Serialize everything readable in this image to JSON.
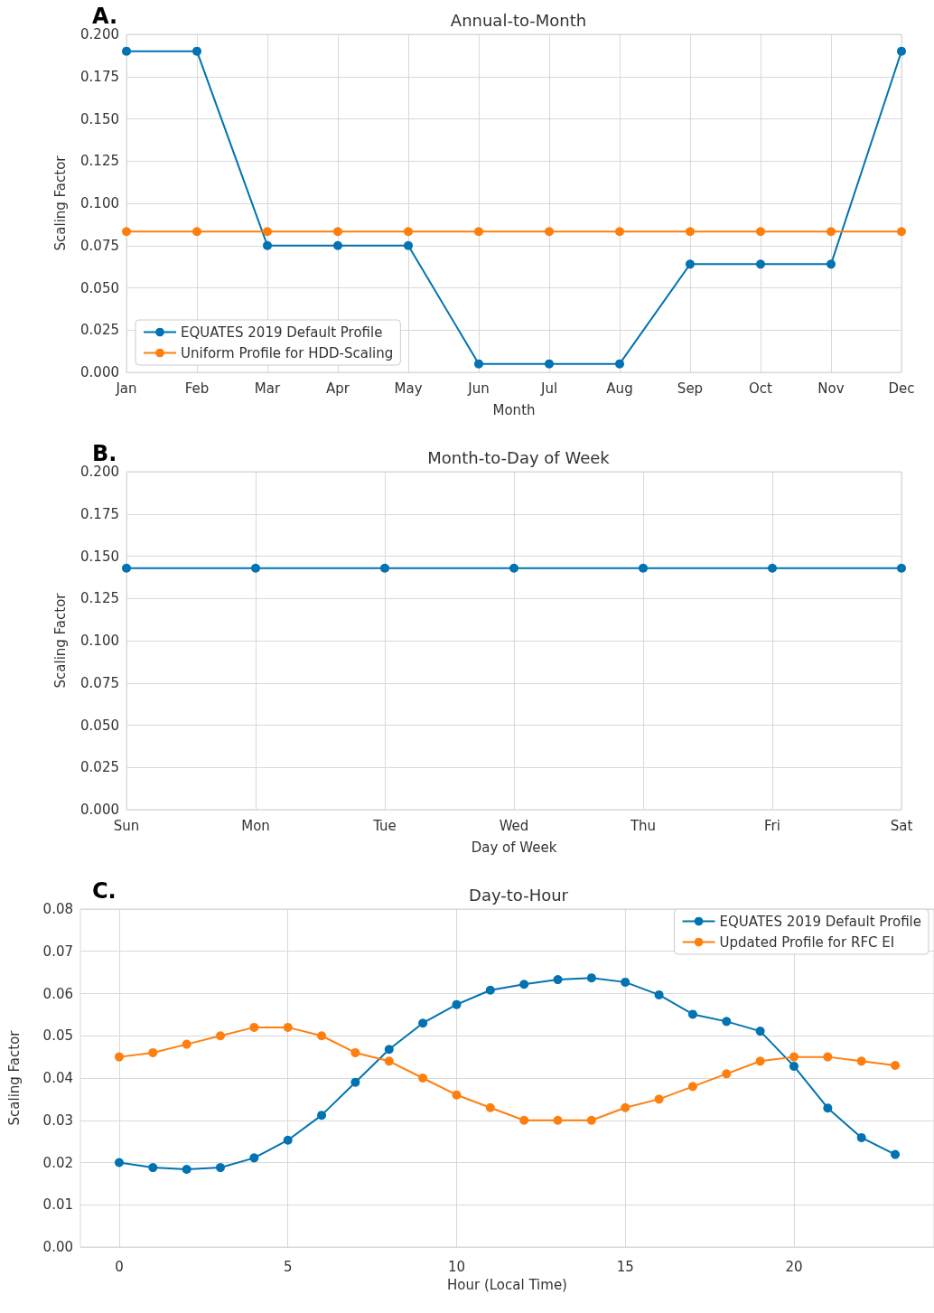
{
  "chart_data": [
    {
      "type": "line",
      "title": "Annual-to-Month",
      "xlabel": "Month",
      "ylabel": "Scaling Factor",
      "annotations": [
        "A."
      ],
      "categories": [
        "Jan",
        "Feb",
        "Mar",
        "Apr",
        "May",
        "Jun",
        "Jul",
        "Aug",
        "Sep",
        "Oct",
        "Nov",
        "Dec"
      ],
      "series": [
        {
          "name": "EQUATES 2019 Default Profile",
          "color": "#0173b2",
          "values": [
            0.19,
            0.19,
            0.075,
            0.075,
            0.075,
            0.005,
            0.005,
            0.005,
            0.064,
            0.064,
            0.064,
            0.19
          ]
        },
        {
          "name": "Uniform Profile for HDD-Scaling",
          "color": "#ff7f0e",
          "values": [
            0.0833,
            0.0833,
            0.0833,
            0.0833,
            0.0833,
            0.0833,
            0.0833,
            0.0833,
            0.0833,
            0.0833,
            0.0833,
            0.0833
          ]
        }
      ],
      "ylim": [
        0,
        0.2
      ],
      "yticks": [
        {
          "value": 0,
          "label": "0.000"
        },
        {
          "value": 0.025,
          "label": "0.025"
        },
        {
          "value": 0.05,
          "label": "0.050"
        },
        {
          "value": 0.075,
          "label": "0.075"
        },
        {
          "value": 0.1,
          "label": "0.100"
        },
        {
          "value": 0.125,
          "label": "0.125"
        },
        {
          "value": 0.15,
          "label": "0.150"
        },
        {
          "value": 0.175,
          "label": "0.175"
        },
        {
          "value": 0.2,
          "label": "0.200"
        }
      ],
      "grid": true,
      "legend": "bottom left",
      "marker": "circle",
      "line_style": "solid"
    },
    {
      "type": "line",
      "title": "Month-to-Day of Week",
      "xlabel": "Day of Week",
      "ylabel": "Scaling Factor",
      "annotations": [
        "B."
      ],
      "categories": [
        "Sun",
        "Mon",
        "Tue",
        "Wed",
        "Thu",
        "Fri",
        "Sat"
      ],
      "series": [
        {
          "color": "#0173b2",
          "values": [
            0.1429,
            0.1429,
            0.1429,
            0.1429,
            0.1429,
            0.1429,
            0.1429
          ]
        }
      ],
      "ylim": [
        0,
        0.2
      ],
      "yticks": [
        {
          "value": 0,
          "label": "0.000"
        },
        {
          "value": 0.025,
          "label": "0.025"
        },
        {
          "value": 0.05,
          "label": "0.050"
        },
        {
          "value": 0.075,
          "label": "0.075"
        },
        {
          "value": 0.1,
          "label": "0.100"
        },
        {
          "value": 0.125,
          "label": "0.125"
        },
        {
          "value": 0.15,
          "label": "0.150"
        },
        {
          "value": 0.175,
          "label": "0.175"
        },
        {
          "value": 0.2,
          "label": "0.200"
        }
      ],
      "grid": true,
      "marker": "circle",
      "line_style": "solid"
    },
    {
      "type": "line",
      "title": "Day-to-Hour",
      "xlabel": "Hour (Local Time)",
      "ylabel": "Scaling Factor",
      "annotations": [
        "C."
      ],
      "x": [
        0,
        1,
        2,
        3,
        4,
        5,
        6,
        7,
        8,
        9,
        10,
        11,
        12,
        13,
        14,
        15,
        16,
        17,
        18,
        19,
        20,
        21,
        22,
        23
      ],
      "series": [
        {
          "name": "EQUATES 2019 Default Profile",
          "color": "#0173b2",
          "values": [
            0.02,
            0.0188,
            0.0184,
            0.0188,
            0.0211,
            0.0253,
            0.0312,
            0.039,
            0.0468,
            0.053,
            0.0574,
            0.0608,
            0.0622,
            0.0633,
            0.0637,
            0.0627,
            0.0597,
            0.0551,
            0.0534,
            0.0511,
            0.0428,
            0.0329,
            0.0259,
            0.0219
          ]
        },
        {
          "name": "Updated Profile for RFC EI",
          "color": "#ff7f0e",
          "values": [
            0.045,
            0.046,
            0.048,
            0.05,
            0.052,
            0.052,
            0.05,
            0.046,
            0.044,
            0.04,
            0.036,
            0.033,
            0.03,
            0.03,
            0.03,
            0.033,
            0.035,
            0.038,
            0.041,
            0.044,
            0.045,
            0.045,
            0.044,
            0.043
          ]
        }
      ],
      "xlim": [
        -1.15,
        24.15
      ],
      "xticks": [
        0,
        5,
        10,
        15,
        20
      ],
      "ylim": [
        0,
        0.08
      ],
      "yticks": [
        {
          "value": 0,
          "label": "0.00"
        },
        {
          "value": 0.01,
          "label": "0.01"
        },
        {
          "value": 0.02,
          "label": "0.02"
        },
        {
          "value": 0.03,
          "label": "0.03"
        },
        {
          "value": 0.04,
          "label": "0.04"
        },
        {
          "value": 0.05,
          "label": "0.05"
        },
        {
          "value": 0.06,
          "label": "0.06"
        },
        {
          "value": 0.07,
          "label": "0.07"
        },
        {
          "value": 0.08,
          "label": "0.08"
        }
      ],
      "grid": true,
      "legend": "top right",
      "marker": "circle",
      "line_style": "solid"
    }
  ]
}
